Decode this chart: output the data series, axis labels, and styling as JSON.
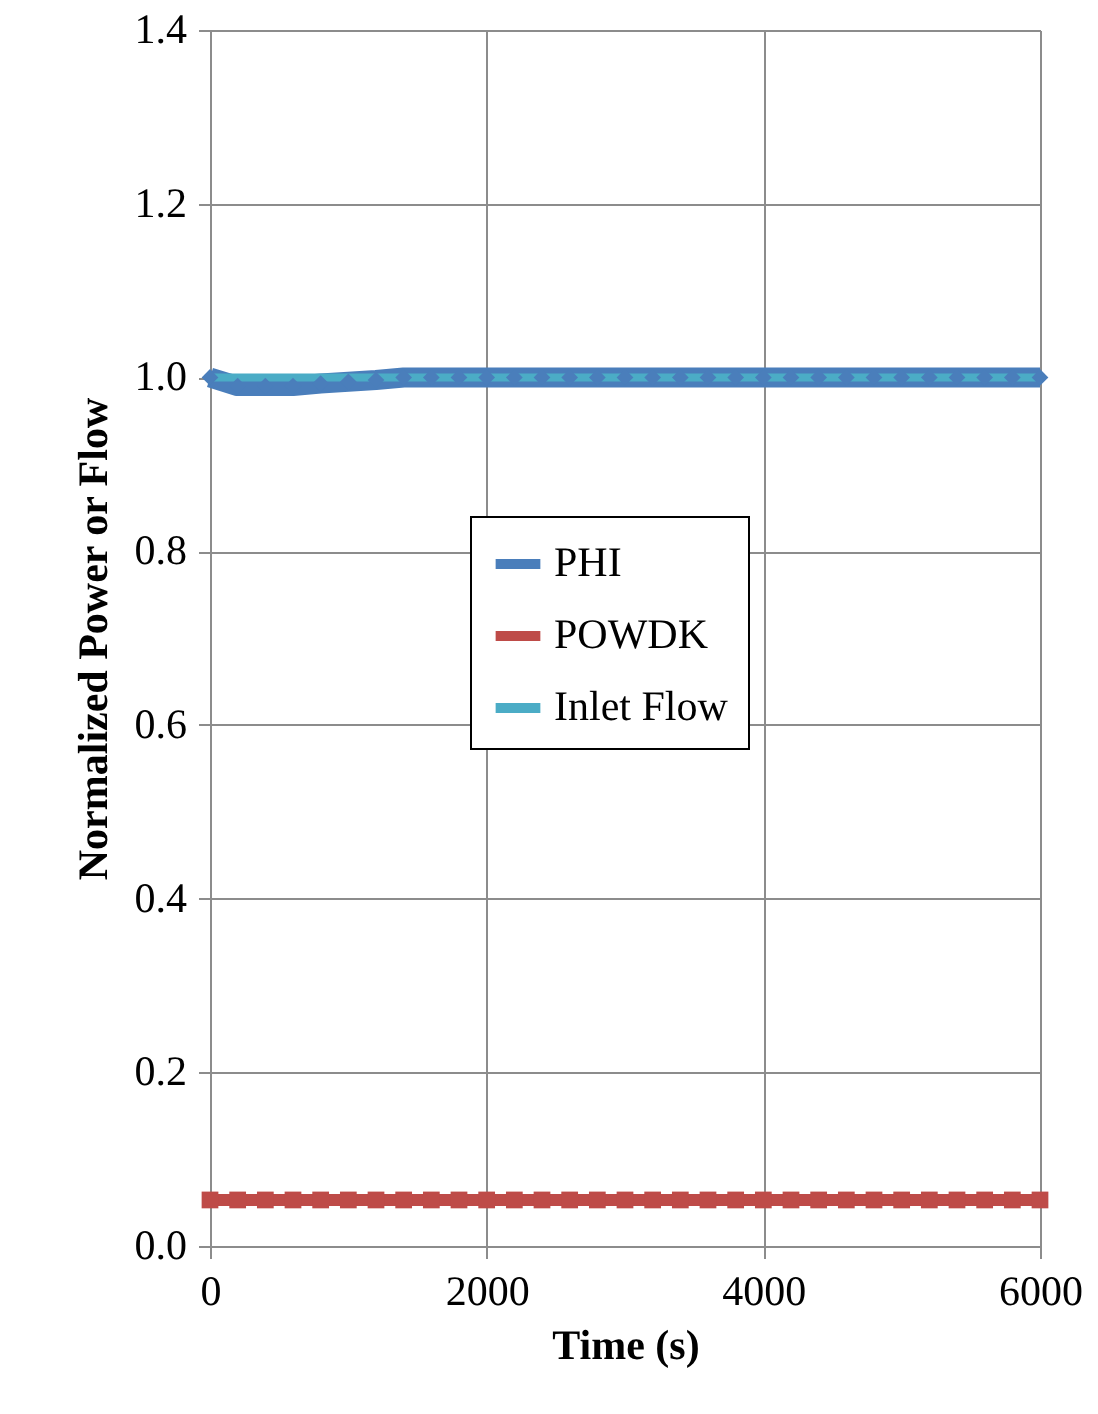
{
  "chart_data": {
    "type": "line",
    "xlabel": "Time (s)",
    "ylabel": "Normalized Power or Flow",
    "xlim": [
      0,
      6000
    ],
    "xticks": [
      0,
      2000,
      4000,
      6000
    ],
    "ylim": [
      0,
      1.4
    ],
    "yticks": [
      {
        "value": 0,
        "label": "0.0"
      },
      0.2,
      0.4,
      0.6,
      0.8,
      {
        "value": 1,
        "label": "1.0"
      },
      1.2,
      1.4
    ],
    "grid": true,
    "legend": "center",
    "series": [
      {
        "name": "PHI",
        "color": "#4a7ebb",
        "marker": "diamond",
        "x": [
          0,
          200,
          400,
          600,
          800,
          1000,
          1200,
          1400,
          1600,
          1800,
          2000,
          2200,
          2400,
          2600,
          2800,
          3000,
          3200,
          3400,
          3600,
          3800,
          4000,
          4200,
          4400,
          4600,
          4800,
          5000,
          5200,
          5400,
          5600,
          5800,
          6000
        ],
        "values": [
          1.0,
          0.99,
          0.99,
          0.99,
          0.993,
          0.995,
          0.997,
          1.0,
          1.0,
          1.0,
          1.0,
          1.0,
          1.0,
          1.0,
          1.0,
          1.0,
          1.0,
          1.0,
          1.0,
          1.0,
          1.0,
          1.0,
          1.0,
          1.0,
          1.0,
          1.0,
          1.0,
          1.0,
          1.0,
          1.0,
          1.0
        ]
      },
      {
        "name": "POWDK",
        "color": "#be4b48",
        "marker": "square",
        "x": [
          0,
          200,
          400,
          600,
          800,
          1000,
          1200,
          1400,
          1600,
          1800,
          2000,
          2200,
          2400,
          2600,
          2800,
          3000,
          3200,
          3400,
          3600,
          3800,
          4000,
          4200,
          4400,
          4600,
          4800,
          5000,
          5200,
          5400,
          5600,
          5800,
          6000
        ],
        "values": [
          0.053,
          0.053,
          0.053,
          0.053,
          0.053,
          0.053,
          0.053,
          0.053,
          0.053,
          0.053,
          0.053,
          0.053,
          0.053,
          0.053,
          0.053,
          0.053,
          0.053,
          0.053,
          0.053,
          0.053,
          0.053,
          0.053,
          0.053,
          0.053,
          0.053,
          0.053,
          0.053,
          0.053,
          0.053,
          0.053,
          0.053
        ]
      },
      {
        "name": "Inlet Flow",
        "color": "#4bacc6",
        "marker": "none",
        "x": [
          0,
          6000
        ],
        "values": [
          1.0,
          1.0
        ]
      }
    ]
  }
}
